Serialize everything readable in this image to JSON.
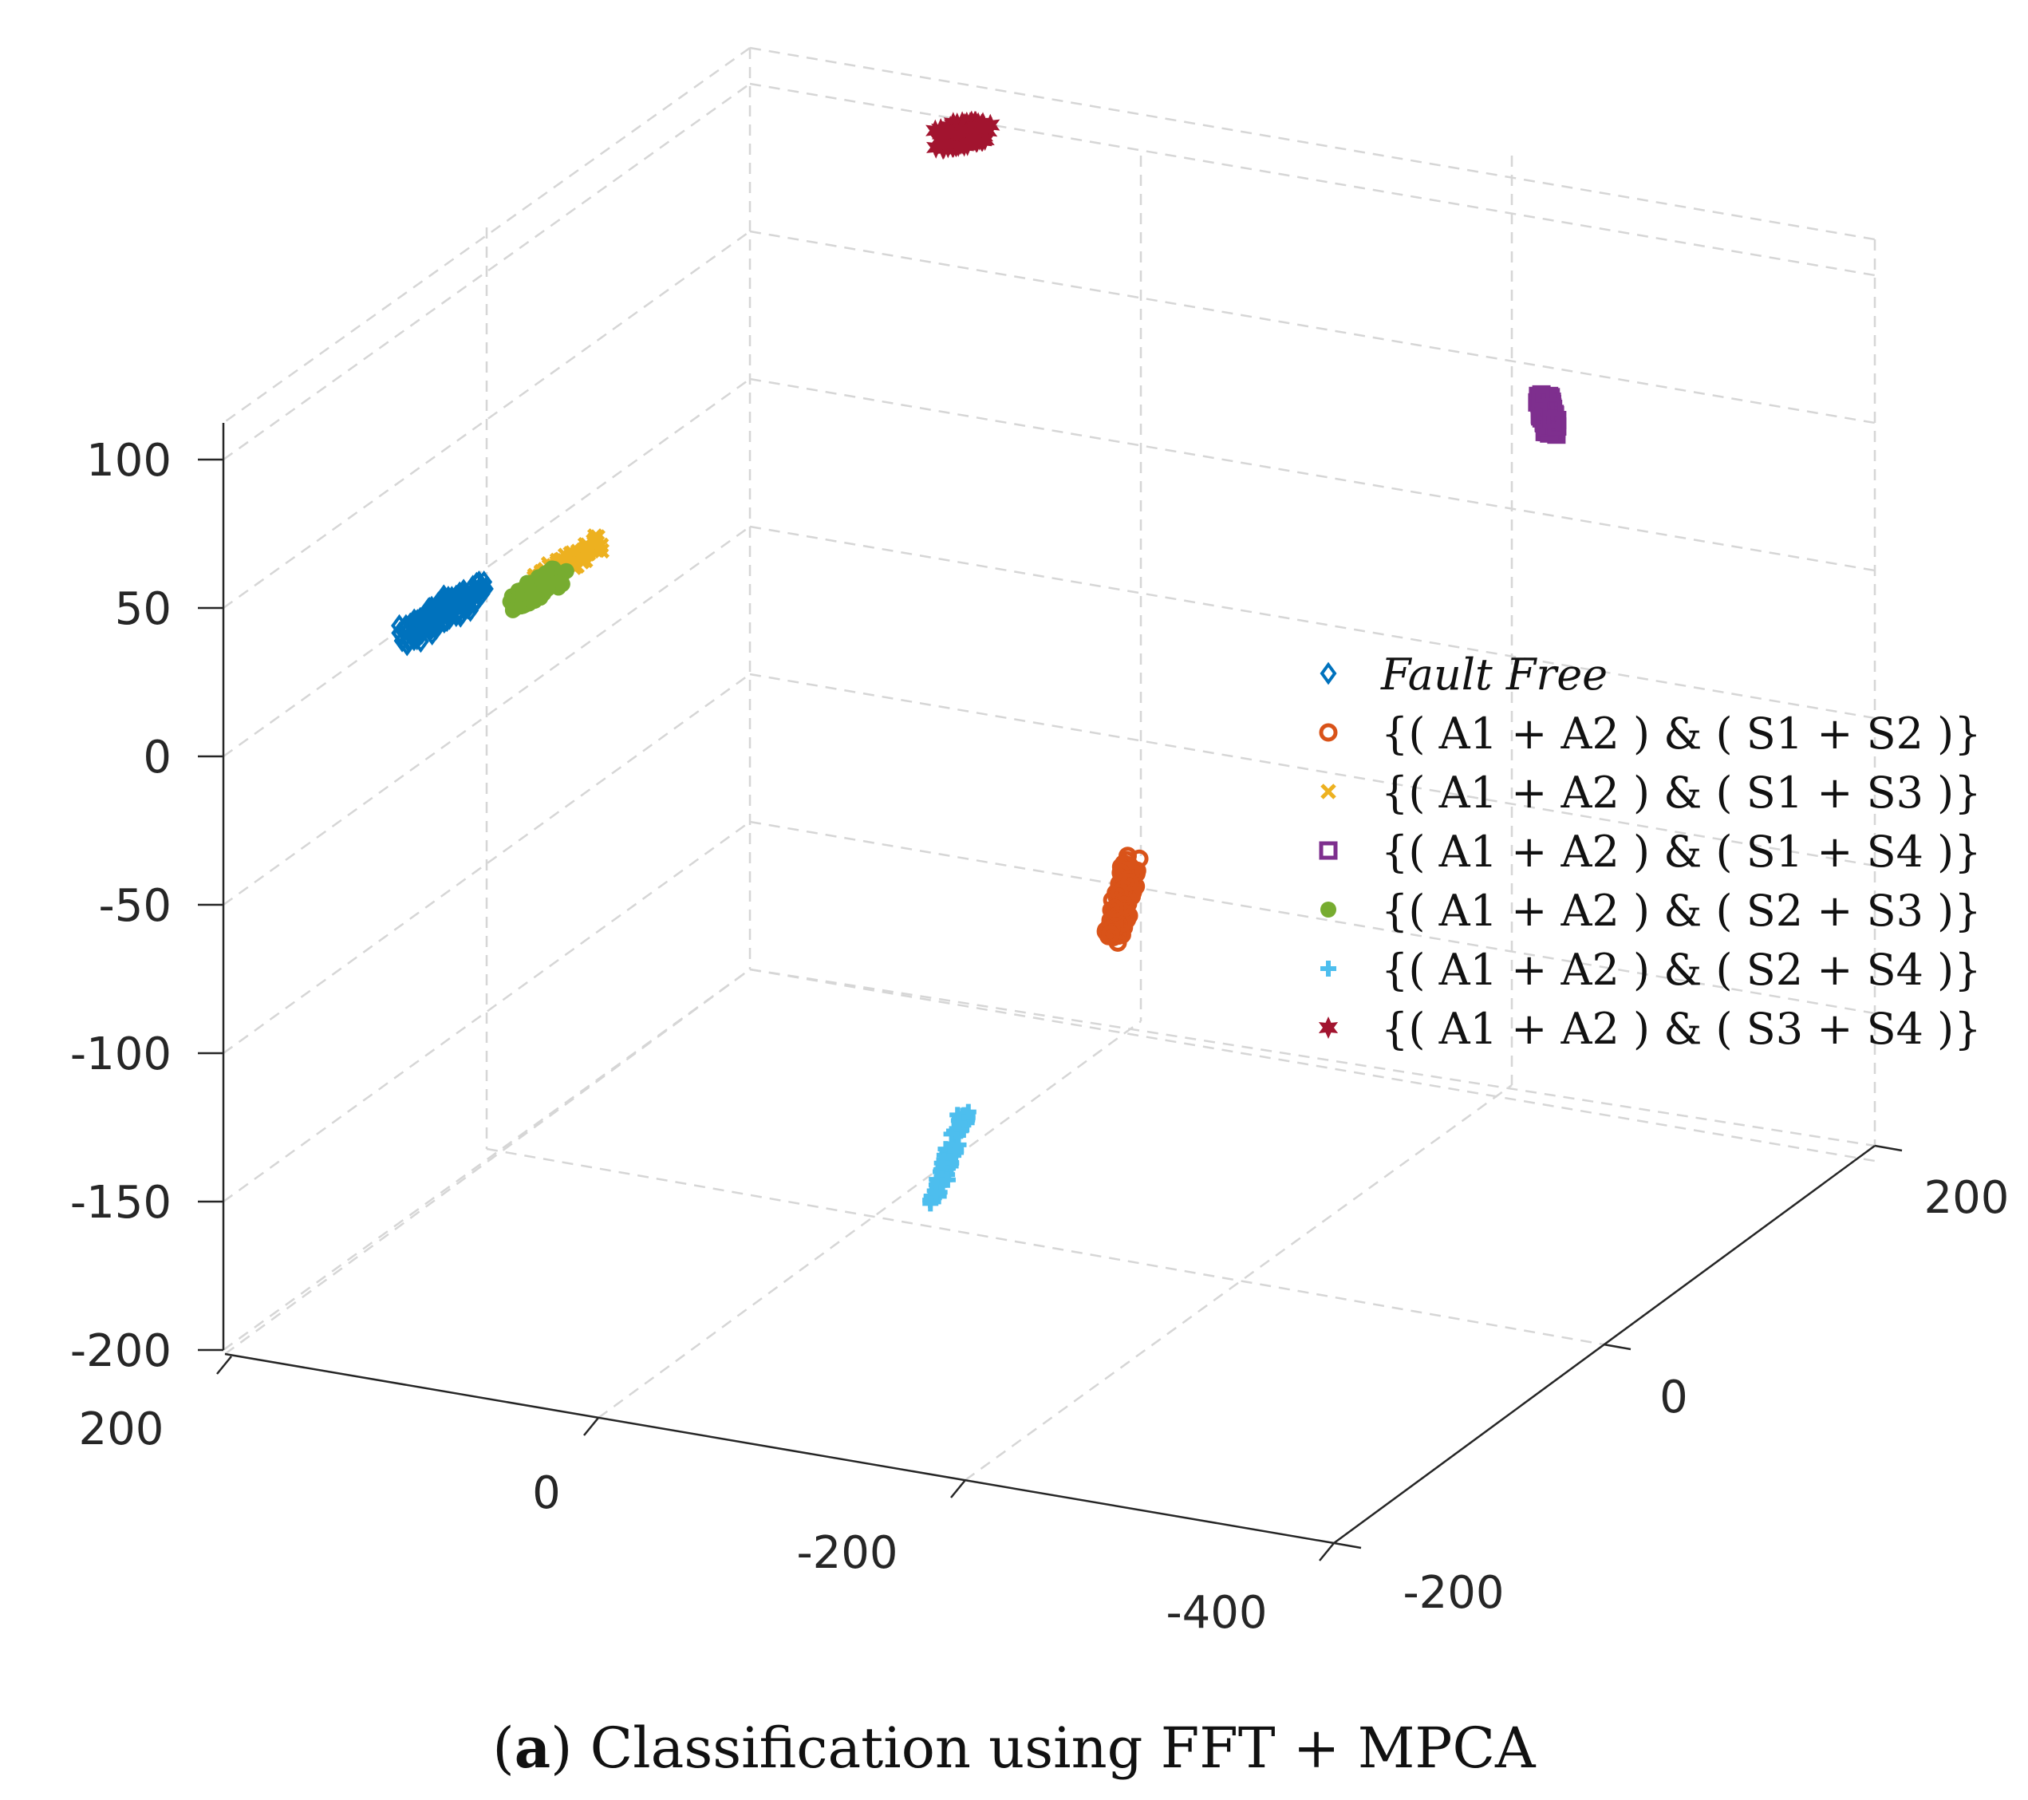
{
  "chart_data": {
    "type": "scatter3d",
    "title": "",
    "axes": {
      "x": {
        "ticks": [
          200,
          0,
          -200,
          -400
        ],
        "tick_labels": [
          "200",
          "0",
          "-200",
          "-400"
        ],
        "range": [
          -400,
          200
        ]
      },
      "y": {
        "ticks": [
          -200,
          0,
          200
        ],
        "tick_labels": [
          "-200",
          "0",
          "200"
        ],
        "range": [
          -200,
          200
        ]
      },
      "z": {
        "ticks": [
          -200,
          -150,
          -100,
          -50,
          0,
          50,
          100
        ],
        "tick_labels": [
          "-200",
          "-150",
          "-100",
          "-50",
          "0",
          "50",
          "100"
        ],
        "range": [
          -200,
          100
        ]
      }
    },
    "grid": true,
    "legend_position": "right",
    "series": [
      {
        "name": "Fault Free",
        "marker": "diamond-open",
        "color": "#0072BD",
        "italic": true
      },
      {
        "name": "{( A1 + A2 ) & ( S1 + S2 )}",
        "marker": "circle-open",
        "color": "#D95319"
      },
      {
        "name": "{( A1 + A2 ) & ( S1 + S3 )}",
        "marker": "x",
        "color": "#EDB120"
      },
      {
        "name": "{( A1 + A2 ) & ( S1 + S4 )}",
        "marker": "square-open",
        "color": "#7E2F8E"
      },
      {
        "name": "{( A1 + A2 ) & ( S2 + S3 )}",
        "marker": "circle-filled",
        "color": "#77AC30"
      },
      {
        "name": "{( A1 + A2 ) & ( S2 + S4 )}",
        "marker": "plus",
        "color": "#4DBEEE"
      },
      {
        "name": "{( A1 + A2 ) & ( S3 + S4 )}",
        "marker": "hexagram",
        "color": "#A2142F"
      }
    ]
  },
  "caption": {
    "label": "a",
    "text": "Classification using FFT + MPCA"
  }
}
